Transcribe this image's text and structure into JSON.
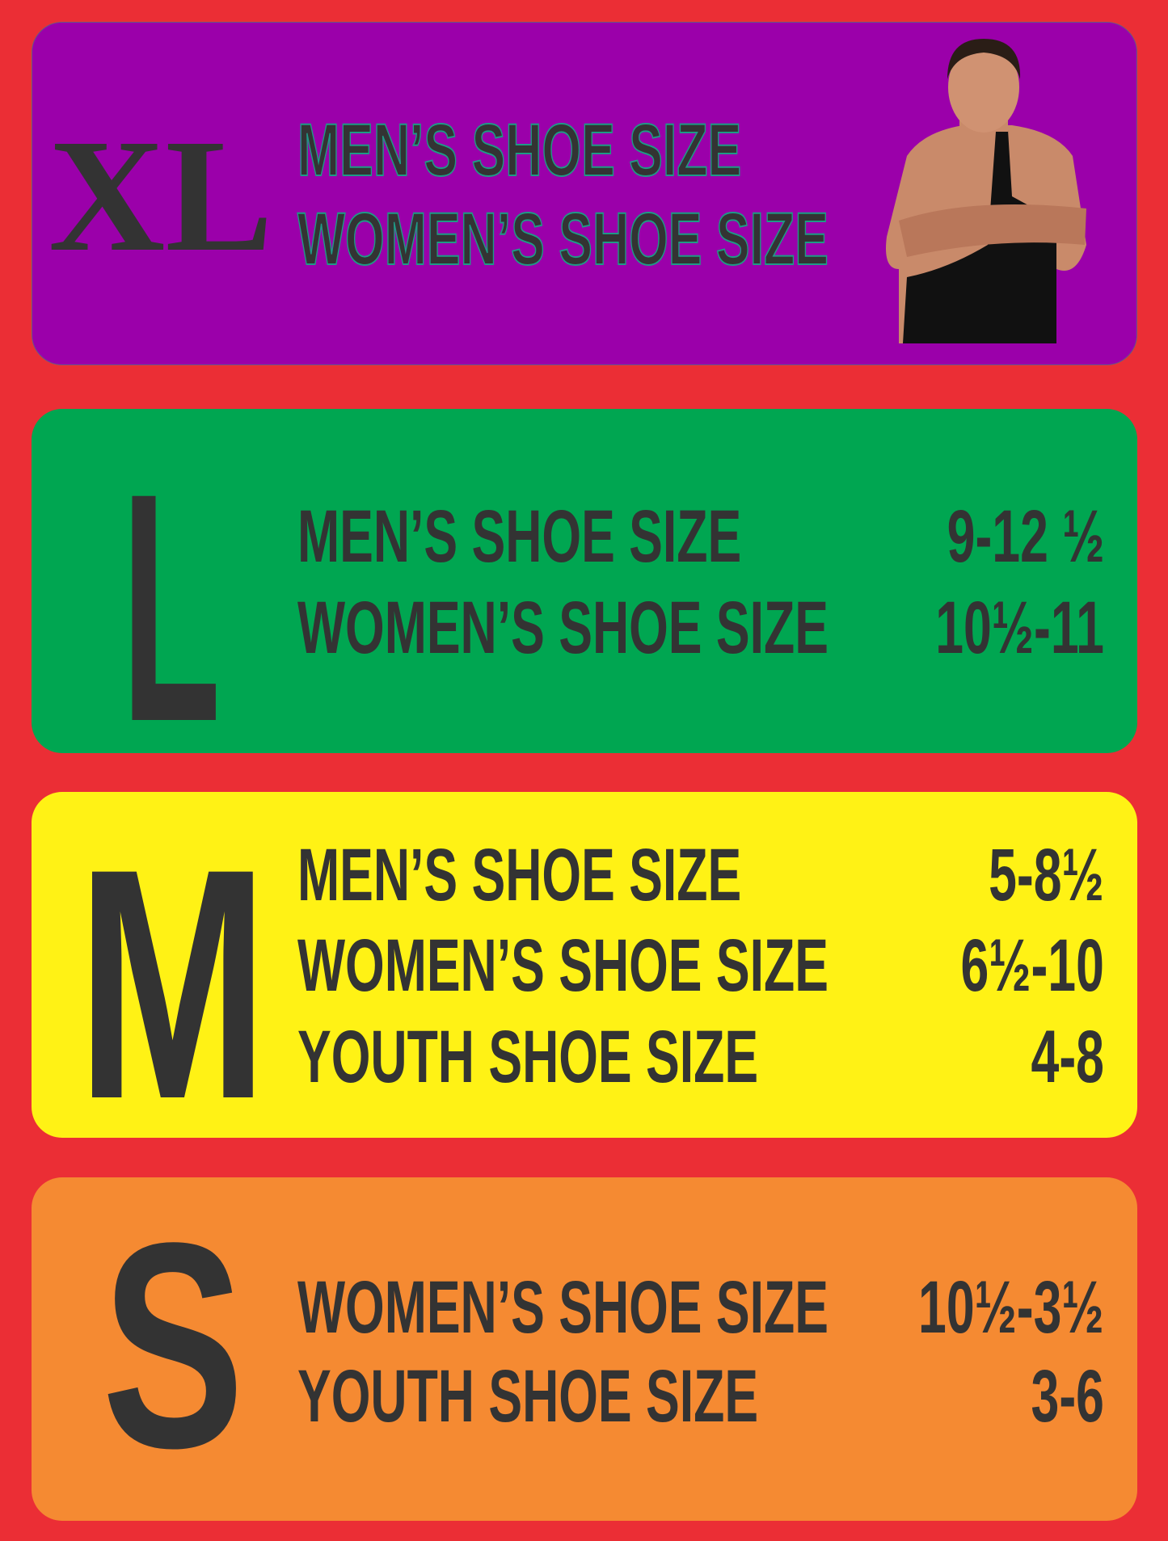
{
  "colors": {
    "background": "#EB2E35",
    "xl": "#9B00AA",
    "l": "#00A651",
    "m": "#FFF215",
    "s": "#F58A32",
    "text": "#333333"
  },
  "sizes": [
    {
      "letter": "XL",
      "rows": [
        {
          "label": "MEN’S SHOE SIZE"
        },
        {
          "label": "WOMEN’S SHOE SIZE"
        }
      ],
      "image": "wrestler-photo"
    },
    {
      "letter": "L",
      "rows": [
        {
          "label": "MEN’S SHOE SIZE",
          "value": "9-12 ½"
        },
        {
          "label": "WOMEN’S SHOE SIZE",
          "value": "10½-11"
        }
      ]
    },
    {
      "letter": "M",
      "rows": [
        {
          "label": "MEN’S SHOE SIZE",
          "value": "5-8½"
        },
        {
          "label": "WOMEN’S SHOE SIZE",
          "value": "6½-10"
        },
        {
          "label": "YOUTH SHOE SIZE",
          "value": "4-8"
        }
      ]
    },
    {
      "letter": "S",
      "rows": [
        {
          "label": "WOMEN’S SHOE SIZE",
          "value": "10½-3½"
        },
        {
          "label": "YOUTH SHOE SIZE",
          "value": "3-6"
        }
      ]
    }
  ]
}
